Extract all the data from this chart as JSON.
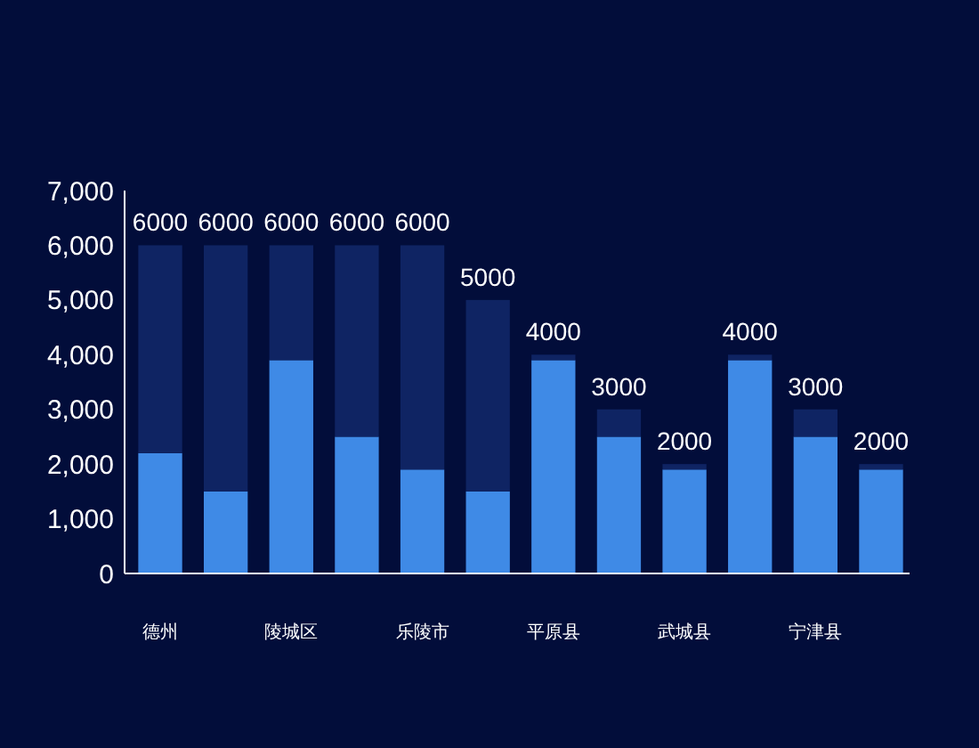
{
  "chart_data": {
    "type": "bar",
    "stacked": true,
    "categories": [
      "德州",
      null,
      "陵城区",
      null,
      "乐陵市",
      null,
      "平原县",
      null,
      "武城县",
      null,
      "宁津县",
      null
    ],
    "series": [
      {
        "color": "#3f8ae6",
        "values": [
          2200,
          1500,
          3900,
          2500,
          1900,
          1500,
          3900,
          2500,
          1900,
          3900,
          2500,
          1900
        ]
      },
      {
        "color": "#0f2463",
        "values": [
          3800,
          4500,
          2100,
          3500,
          4100,
          3500,
          100,
          500,
          100,
          100,
          500,
          100
        ]
      }
    ],
    "totals": [
      "6000",
      "6000",
      "6000",
      "6000",
      "6000",
      "5000",
      "4000",
      "3000",
      "2000",
      "4000",
      "3000",
      "2000"
    ],
    "ylim": [
      0,
      7000
    ],
    "yticks": [
      0,
      {
        "value": 1000,
        "label": "1,000"
      },
      {
        "value": 2000,
        "label": "2,000"
      },
      {
        "value": 3000,
        "label": "3,000"
      },
      {
        "value": 4000,
        "label": "4,000"
      },
      {
        "value": 5000,
        "label": "5,000"
      },
      {
        "value": 6000,
        "label": "6,000"
      },
      {
        "value": 7000,
        "label": "7,000"
      }
    ],
    "grid": false
  }
}
